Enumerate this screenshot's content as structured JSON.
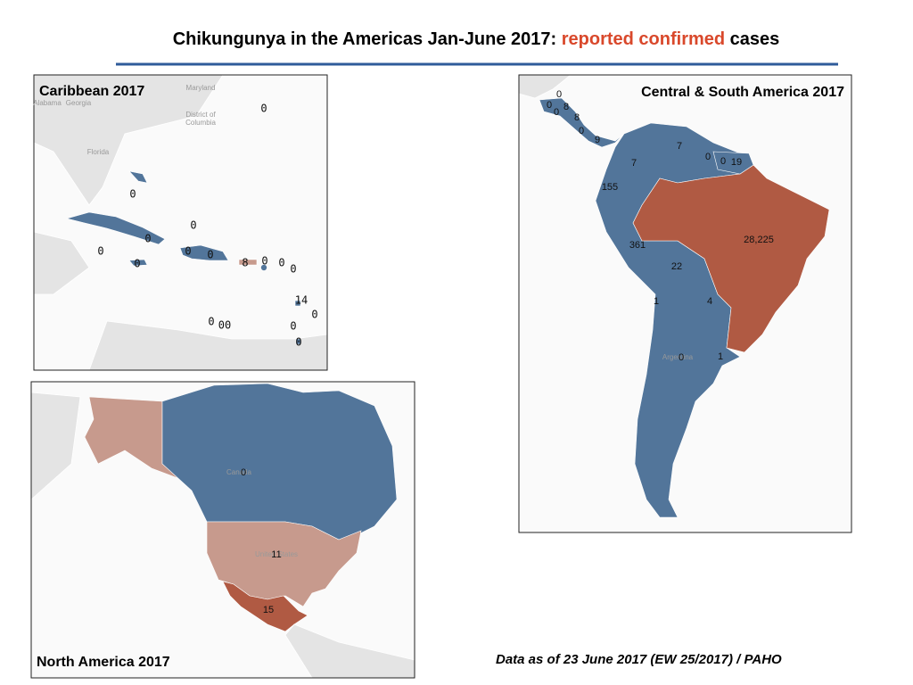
{
  "title": {
    "prefix": "Chikungunya in the Americas Jan-June 2017: ",
    "highlight": "reported confirmed",
    "suffix": "cases"
  },
  "panels": [
    {
      "title": "Caribbean 2017",
      "places": [
        "Maryland",
        "District of",
        "Columbia",
        "Alabama",
        "Georgia",
        "Florida"
      ],
      "labels": [
        "0",
        "0",
        "0",
        "0",
        "0",
        "0",
        "0",
        "0",
        "8",
        "0",
        "0",
        "0",
        "14",
        "0",
        "0",
        "00",
        "0",
        "0"
      ]
    },
    {
      "title": "Central & South America 2017",
      "places": [
        "Argentina"
      ],
      "labels": [
        "0",
        "0",
        "8",
        "0",
        "8",
        "0",
        "9",
        "7",
        "0",
        "0",
        "19",
        "7",
        "155",
        "28,225",
        "361",
        "22",
        "1",
        "4",
        "0",
        "1"
      ]
    },
    {
      "title": "North America 2017",
      "places": [
        "Canada",
        "United States"
      ],
      "labels": [
        "0",
        "11",
        "15"
      ]
    }
  ],
  "footnote": "Data as of 23 June 2017 (EW 25/2017) / PAHO"
}
